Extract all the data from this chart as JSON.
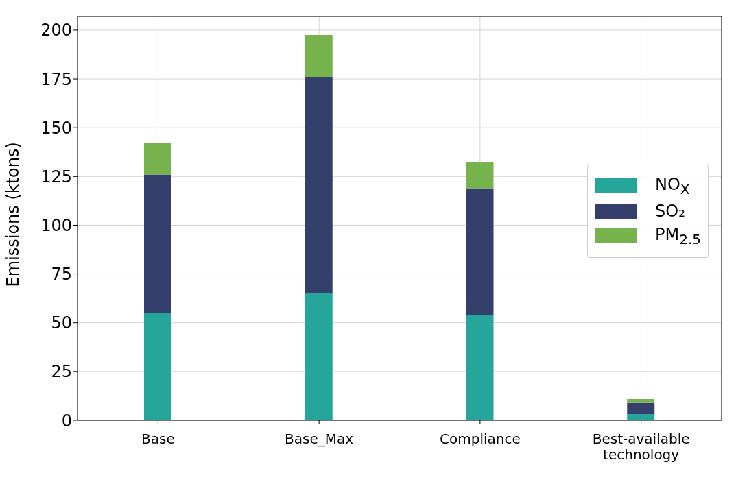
{
  "chart_data": {
    "type": "bar",
    "stacked": true,
    "ylabel": "Emissions (ktons)",
    "categories": [
      "Base",
      "Base_Max",
      "Compliance",
      "Best-available technology"
    ],
    "series": [
      {
        "name": "NO$_{X}$",
        "color": "#26a69a",
        "values": [
          55,
          65,
          54,
          3.2
        ]
      },
      {
        "name": "SO₂",
        "color": "#353f6b",
        "values": [
          71,
          111,
          65,
          5.7
        ]
      },
      {
        "name": "PM$_{2.5}$",
        "color": "#77b34c",
        "values": [
          16,
          21.5,
          13.5,
          2
        ]
      }
    ],
    "ylim": [
      0,
      207
    ],
    "yticks": [
      0,
      25,
      50,
      75,
      100,
      125,
      150,
      175,
      200
    ],
    "grid": true,
    "legend": "right"
  }
}
